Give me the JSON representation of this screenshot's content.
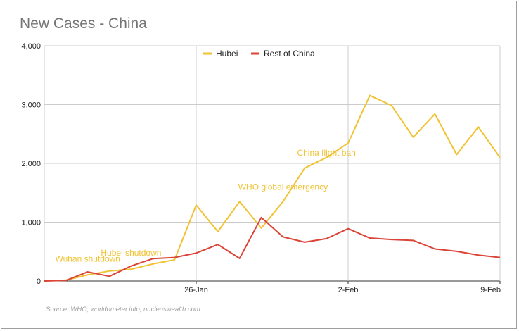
{
  "chart_data": {
    "type": "line",
    "title": "New Cases - China",
    "xlabel": "",
    "ylabel": "",
    "source": "Source: WHO, worldometer.info, nucleuswealth.com",
    "x": [
      "19-Jan",
      "20-Jan",
      "21-Jan",
      "22-Jan",
      "23-Jan",
      "24-Jan",
      "25-Jan",
      "26-Jan",
      "27-Jan",
      "28-Jan",
      "29-Jan",
      "30-Jan",
      "31-Jan",
      "1-Feb",
      "2-Feb",
      "3-Feb",
      "4-Feb",
      "5-Feb",
      "6-Feb",
      "7-Feb",
      "8-Feb",
      "9-Feb"
    ],
    "x_ticks": [
      "26-Jan",
      "2-Feb",
      "9-Feb"
    ],
    "ylim": [
      0,
      4000
    ],
    "y_ticks": [
      "0",
      "1,000",
      "2,000",
      "3,000",
      "4,000"
    ],
    "y_tick_values": [
      0,
      1000,
      2000,
      3000,
      4000
    ],
    "grid": true,
    "legend_position": "top",
    "series": [
      {
        "name": "Hubei",
        "color": "#f1c232",
        "values": [
          0,
          15,
          105,
          170,
          200,
          290,
          360,
          1290,
          840,
          1350,
          900,
          1350,
          1920,
          2100,
          2345,
          3155,
          2985,
          2445,
          2840,
          2150,
          2620,
          2100
        ]
      },
      {
        "name": "Rest of China",
        "color": "#db4437",
        "values": [
          0,
          10,
          155,
          80,
          255,
          380,
          400,
          475,
          620,
          385,
          1080,
          750,
          660,
          720,
          890,
          730,
          705,
          690,
          545,
          505,
          440,
          400
        ]
      }
    ],
    "annotations": [
      {
        "text": "Wuhan shutdown",
        "x": "21-Jan",
        "y": 330
      },
      {
        "text": "Hubei shutdown",
        "x": "23-Jan",
        "y": 430
      },
      {
        "text": "WHO global emergency",
        "x": "30-Jan",
        "y": 1550
      },
      {
        "text": "China flight ban",
        "x": "1-Feb",
        "y": 2130
      }
    ]
  }
}
